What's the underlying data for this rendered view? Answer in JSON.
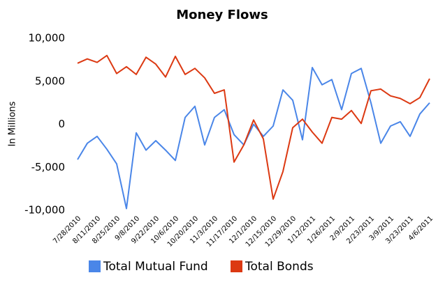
{
  "chart_data": {
    "type": "line",
    "title": "Money Flows",
    "y_label": "In Millions",
    "categories": [
      "7/28/2010",
      null,
      "8/11/2010",
      null,
      "8/25/2010",
      null,
      "9/8/2010",
      null,
      "9/22/2010",
      null,
      "10/6/2010",
      null,
      "10/20/2010",
      null,
      "11/3/2010",
      null,
      "11/17/2010",
      null,
      "12/1/2010",
      null,
      "12/15/2010",
      null,
      "12/29/2010",
      null,
      "1/12/2011",
      null,
      "1/26/2011",
      null,
      "2/9/2011",
      null,
      "2/23/2011",
      null,
      "3/9/2011",
      null,
      "3/23/2011",
      null,
      "4/6/2011"
    ],
    "series": [
      {
        "name": "Total Mutual Fund",
        "color": "#4a86e8",
        "values": [
          -4100,
          -2200,
          -1400,
          -2900,
          -4600,
          -9800,
          -1000,
          -3000,
          -1900,
          -3000,
          -4200,
          800,
          2100,
          -2400,
          800,
          1700,
          -1200,
          -2400,
          0,
          -1400,
          -200,
          4000,
          2800,
          -1800,
          6600,
          4600,
          5200,
          1700,
          5900,
          6500,
          2500,
          -2200,
          -200,
          300,
          -1400,
          1200,
          2500
        ]
      },
      {
        "name": "Total Bonds",
        "color": "#dc3912",
        "values": [
          7100,
          7600,
          7200,
          8000,
          5900,
          6700,
          5800,
          7800,
          7000,
          5500,
          7900,
          5800,
          6500,
          5400,
          3600,
          4000,
          -4400,
          -2400,
          500,
          -1700,
          -8700,
          -5500,
          -400,
          600,
          -900,
          -2200,
          800,
          600,
          1600,
          100,
          3900,
          4100,
          3300,
          3000,
          2400,
          3100,
          5300
        ]
      }
    ],
    "ylim": [
      -10000,
      10000
    ],
    "yticks": [
      {
        "value": -10000,
        "label": "-10,000"
      },
      {
        "value": -5000,
        "label": "-5,000"
      },
      0,
      {
        "value": 5000,
        "label": "5,000"
      },
      {
        "value": 10000,
        "label": "10,000"
      }
    ],
    "grid": false
  }
}
